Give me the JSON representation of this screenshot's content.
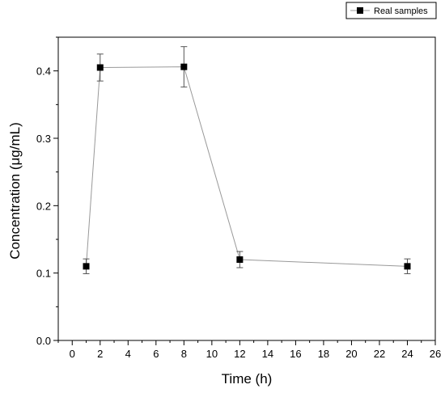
{
  "chart_data": {
    "type": "line",
    "title": "",
    "xlabel": "Time (h)",
    "ylabel": "Concentration (μg/mL)",
    "xlim": [
      -1,
      26
    ],
    "ylim": [
      0.0,
      0.45
    ],
    "xticks": [
      0,
      2,
      4,
      6,
      8,
      10,
      12,
      14,
      16,
      18,
      20,
      22,
      24,
      26
    ],
    "yticks": [
      0.0,
      0.1,
      0.2,
      0.3,
      0.4
    ],
    "ytick_labels": [
      "0.0",
      "0.1",
      "0.2",
      "0.3",
      "0.4"
    ],
    "grid": false,
    "legend": "top-right",
    "series": [
      {
        "name": "Real samples",
        "color": "#000000",
        "line_color": "#999999",
        "marker": "square",
        "x": [
          1,
          2,
          8,
          12,
          24
        ],
        "y": [
          0.11,
          0.405,
          0.406,
          0.12,
          0.11
        ],
        "error": [
          0.011,
          0.02,
          0.03,
          0.012,
          0.011
        ]
      }
    ]
  }
}
